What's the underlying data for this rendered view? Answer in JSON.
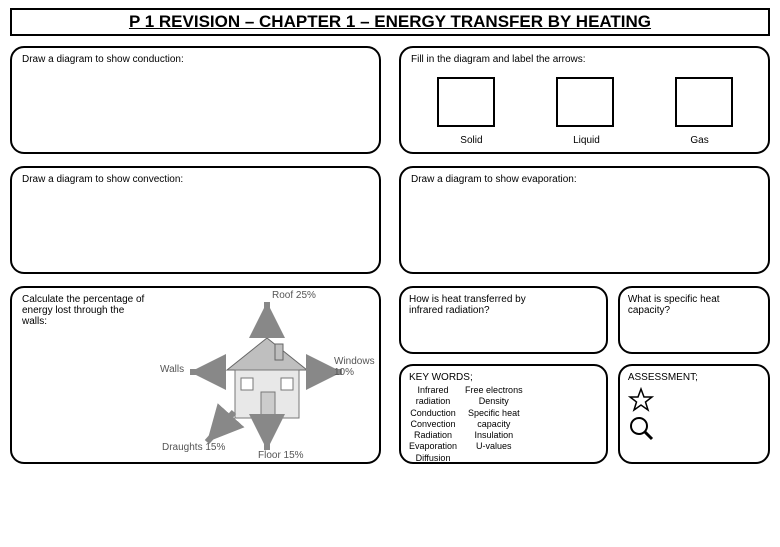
{
  "title": "P 1 REVISION – CHAPTER 1 – ENERGY TRANSFER BY HEATING",
  "boxes": {
    "conduction": "Draw a diagram to show conduction:",
    "fillDiagram": "Fill in the diagram and label the arrows:",
    "states": {
      "solid": "Solid",
      "liquid": "Liquid",
      "gas": "Gas"
    },
    "convection": "Draw a diagram to show convection:",
    "evaporation": "Draw a diagram to show evaporation:",
    "walls": "Calculate the percentage of energy lost through the walls:",
    "infrared": "How is heat transferred by infrared radiation?",
    "specific": "What is specific heat capacity?",
    "keywordsTitle": "KEY WORDS;",
    "assessmentTitle": "ASSESSMENT;"
  },
  "houseLabels": {
    "roof": "Roof 25%",
    "windows": "Windows 10%",
    "walls": "Walls",
    "draughts": "Draughts 15%",
    "floor": "Floor 15%"
  },
  "keywords": {
    "col1": [
      "Infrared",
      "radiation",
      "Conduction",
      "Convection",
      "Radiation",
      "Evaporation",
      "Diffusion"
    ],
    "col2": [
      "Free electrons",
      "Density",
      "Specific heat",
      "capacity",
      "Insulation",
      "U-values"
    ]
  },
  "colors": {
    "border": "#000000",
    "background": "#ffffff",
    "houseFill": "#e8e8e8",
    "houseRoof": "#bfbfbf",
    "labelGray": "#585858"
  }
}
